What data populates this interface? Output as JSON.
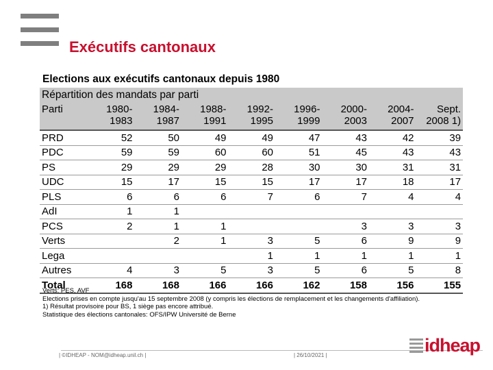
{
  "slide": {
    "title": "Exécutifs cantonaux"
  },
  "table": {
    "title": "Elections aux exécutifs cantonaux depuis 1980",
    "subtitle": "Répartition des mandats par parti",
    "header": {
      "party": "Parti",
      "periods": [
        [
          "1980-",
          "1983"
        ],
        [
          "1984-",
          "1987"
        ],
        [
          "1988-",
          "1991"
        ],
        [
          "1992-",
          "1995"
        ],
        [
          "1996-",
          "1999"
        ],
        [
          "2000-",
          "2003"
        ],
        [
          "2004-",
          "2007"
        ],
        [
          "Sept.",
          "2008 1)"
        ]
      ]
    },
    "rows": [
      {
        "party": "PRD",
        "values": [
          "52",
          "50",
          "49",
          "49",
          "47",
          "43",
          "42",
          "39"
        ]
      },
      {
        "party": "PDC",
        "values": [
          "59",
          "59",
          "60",
          "60",
          "51",
          "45",
          "43",
          "43"
        ]
      },
      {
        "party": "PS",
        "values": [
          "29",
          "29",
          "29",
          "28",
          "30",
          "30",
          "31",
          "31"
        ]
      },
      {
        "party": "UDC",
        "values": [
          "15",
          "17",
          "15",
          "15",
          "17",
          "17",
          "18",
          "17"
        ]
      },
      {
        "party": "PLS",
        "values": [
          "6",
          "6",
          "6",
          "7",
          "6",
          "7",
          "4",
          "4"
        ]
      },
      {
        "party": "AdI",
        "values": [
          "1",
          "1",
          "",
          "",
          "",
          "",
          "",
          ""
        ]
      },
      {
        "party": "PCS",
        "values": [
          "2",
          "1",
          "1",
          "",
          "",
          "3",
          "3",
          "3"
        ]
      },
      {
        "party": "Verts",
        "values": [
          "",
          "2",
          "1",
          "3",
          "5",
          "6",
          "9",
          "9"
        ]
      },
      {
        "party": "Lega",
        "values": [
          "",
          "",
          "",
          "1",
          "1",
          "1",
          "1",
          "1"
        ]
      },
      {
        "party": "Autres",
        "values": [
          "4",
          "3",
          "5",
          "3",
          "5",
          "6",
          "5",
          "8"
        ]
      }
    ],
    "total": {
      "party": "Total",
      "values": [
        "168",
        "168",
        "166",
        "166",
        "162",
        "158",
        "156",
        "155"
      ]
    }
  },
  "notes": [
    "Verts: PES, AVF",
    "Elections prises en compte jusqu'au 15 septembre 2008 (y compris les élections de remplacement et les changements d'affiliation).",
    "1) Résultat provisoire pour BS, 1 siège pas encore attribué.",
    "Statistique des élections cantonales: OFS/IPW Université de Berne"
  ],
  "footer": {
    "left": "| ©IDHEAP - NOM@idheap.unil.ch |",
    "date": "| 26/10/2021 |",
    "logo": "idheap"
  }
}
